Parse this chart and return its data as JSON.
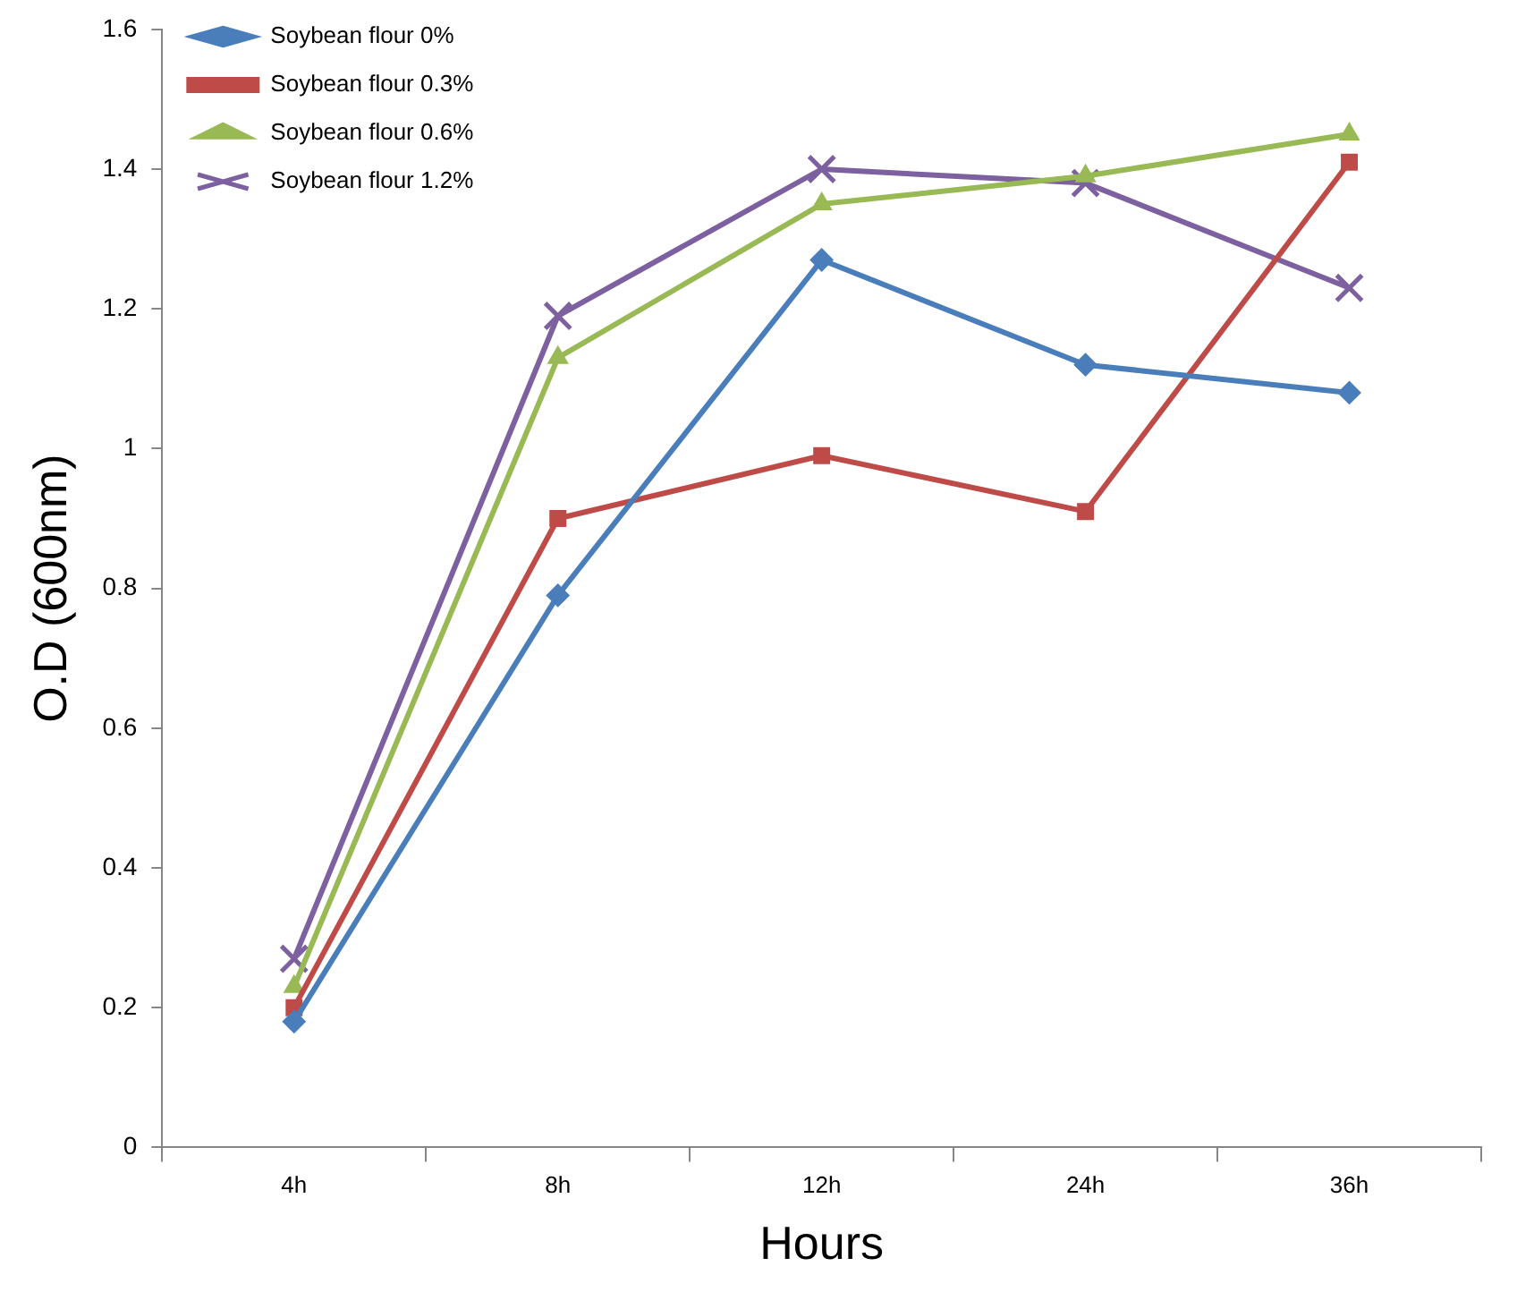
{
  "chart_data": {
    "type": "line",
    "xlabel": "Hours",
    "ylabel": "O.D (600nm)",
    "categories": [
      "4h",
      "8h",
      "12h",
      "24h",
      "36h"
    ],
    "ylim": [
      0,
      1.6
    ],
    "yticks": [
      {
        "value": 0,
        "label": "0"
      },
      {
        "value": 0.2,
        "label": "0.2"
      },
      {
        "value": 0.4,
        "label": "0.4"
      },
      {
        "value": 0.6,
        "label": "0.6"
      },
      {
        "value": 0.8,
        "label": "0.8"
      },
      {
        "value": 1,
        "label": "1"
      },
      {
        "value": 1.2,
        "label": "1.2"
      },
      {
        "value": 1.4,
        "label": "1.4"
      },
      {
        "value": 1.6,
        "label": "1.6"
      }
    ],
    "legend": "top left",
    "line_style": "solid",
    "series": [
      {
        "name": "Soybean flour 0%",
        "color": "#4a7ebb",
        "marker": "diamond",
        "values": [
          0.18,
          0.79,
          1.27,
          1.12,
          1.08
        ]
      },
      {
        "name": "Soybean flour 0.3%",
        "color": "#be4b48",
        "marker": "square",
        "values": [
          0.2,
          0.9,
          0.99,
          0.91,
          1.41
        ]
      },
      {
        "name": "Soybean flour 0.6%",
        "color": "#98b954",
        "marker": "triangle",
        "values": [
          0.23,
          1.13,
          1.35,
          1.39,
          1.45
        ]
      },
      {
        "name": "Soybean flour 1.2%",
        "color": "#7d60a0",
        "marker": "cross",
        "values": [
          0.27,
          1.19,
          1.4,
          1.38,
          1.23
        ]
      }
    ]
  }
}
